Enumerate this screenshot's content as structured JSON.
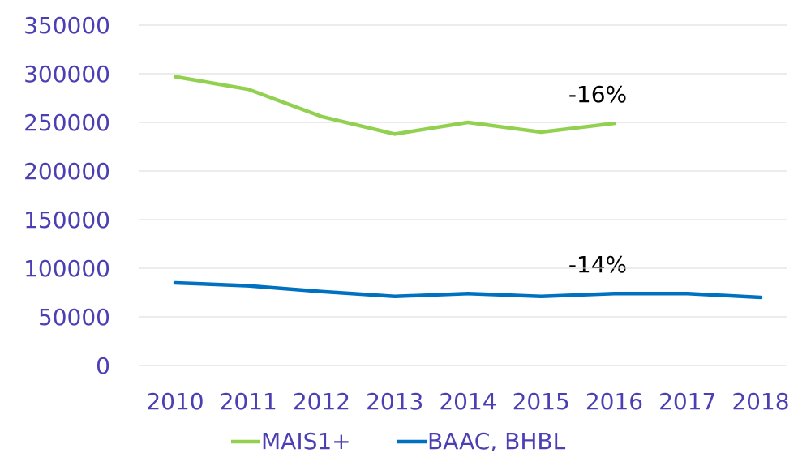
{
  "chart_data": {
    "type": "line",
    "categories": [
      "2010",
      "2011",
      "2012",
      "2013",
      "2014",
      "2015",
      "2016",
      "2017",
      "2018"
    ],
    "series": [
      {
        "name": "MAIS1+",
        "color": "#92d050",
        "values": [
          297000,
          284000,
          256000,
          238000,
          250000,
          240000,
          249000,
          null,
          null
        ]
      },
      {
        "name": "BAAC, BHBL",
        "color": "#0070c0",
        "values": [
          85000,
          82000,
          76000,
          71000,
          74000,
          71000,
          74000,
          74000,
          70000
        ]
      }
    ],
    "annotations": [
      "-16%",
      "-14%"
    ],
    "ylim": [
      0,
      350000
    ],
    "yticks": [
      0,
      50000,
      100000,
      150000,
      200000,
      250000,
      300000,
      350000
    ],
    "grid": true,
    "legend": "bottom"
  }
}
